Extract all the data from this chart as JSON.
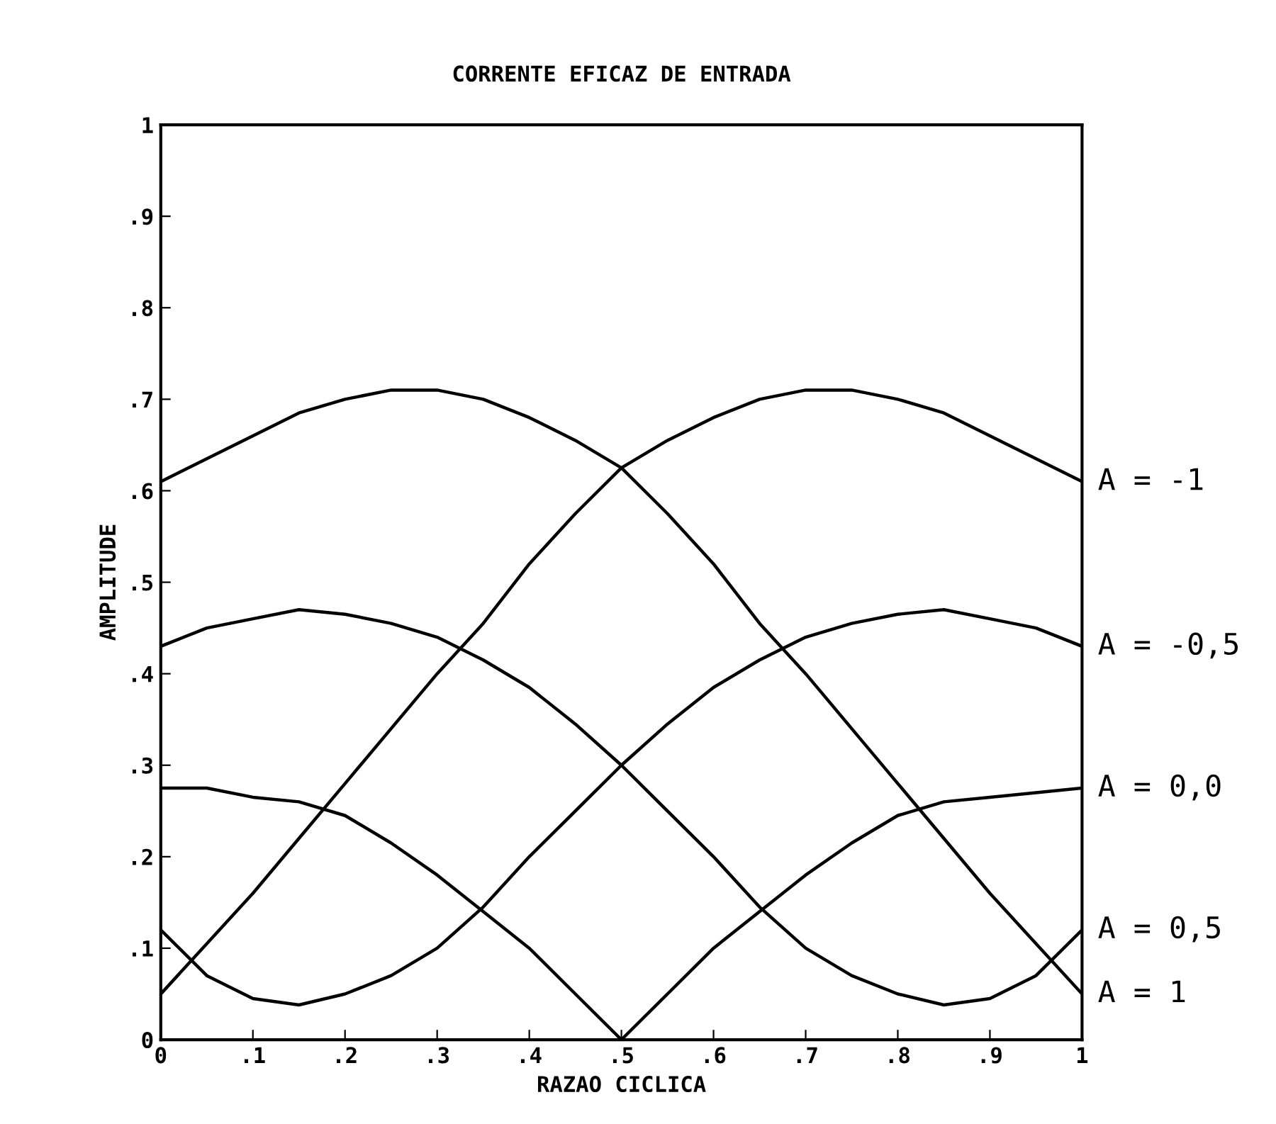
{
  "chart_data": {
    "type": "line",
    "title": "CORRENTE EFICAZ DE ENTRADA",
    "xlabel": "RAZAO CICLICA",
    "ylabel": "AMPLITUDE",
    "x": [
      0,
      0.05,
      0.1,
      0.15,
      0.2,
      0.25,
      0.3,
      0.35,
      0.4,
      0.45,
      0.5,
      0.55,
      0.6,
      0.65,
      0.7,
      0.75,
      0.8,
      0.85,
      0.9,
      0.95,
      1
    ],
    "xlim": [
      0,
      1
    ],
    "ylim": [
      0,
      1
    ],
    "xticks": [
      {
        "value": 0,
        "label": "0"
      },
      {
        "value": 0.1,
        "label": ".1"
      },
      {
        "value": 0.2,
        "label": ".2"
      },
      {
        "value": 0.3,
        "label": ".3"
      },
      {
        "value": 0.4,
        "label": ".4"
      },
      {
        "value": 0.5,
        "label": ".5"
      },
      {
        "value": 0.6,
        "label": ".6"
      },
      {
        "value": 0.7,
        "label": ".7"
      },
      {
        "value": 0.8,
        "label": ".8"
      },
      {
        "value": 0.9,
        "label": ".9"
      },
      {
        "value": 1,
        "label": "1"
      }
    ],
    "yticks": [
      {
        "value": 0,
        "label": "0"
      },
      {
        "value": 0.1,
        "label": ".1"
      },
      {
        "value": 0.2,
        "label": ".2"
      },
      {
        "value": 0.3,
        "label": ".3"
      },
      {
        "value": 0.4,
        "label": ".4"
      },
      {
        "value": 0.5,
        "label": ".5"
      },
      {
        "value": 0.6,
        "label": ".6"
      },
      {
        "value": 0.7,
        "label": ".7"
      },
      {
        "value": 0.8,
        "label": ".8"
      },
      {
        "value": 0.9,
        "label": ".9"
      },
      {
        "value": 1,
        "label": "1"
      }
    ],
    "grid": false,
    "legend": false,
    "marker": "none",
    "line_style": "solid",
    "series": [
      {
        "name": "A = -1",
        "color": "#000000",
        "values": [
          0.05,
          0.105,
          0.16,
          0.22,
          0.28,
          0.34,
          0.4,
          0.455,
          0.52,
          0.575,
          0.625,
          0.655,
          0.68,
          0.7,
          0.71,
          0.71,
          0.7,
          0.685,
          0.66,
          0.635,
          0.61
        ]
      },
      {
        "name": "A = -0,5",
        "color": "#000000",
        "values": [
          0.12,
          0.07,
          0.045,
          0.038,
          0.05,
          0.07,
          0.1,
          0.145,
          0.2,
          0.25,
          0.3,
          0.345,
          0.385,
          0.415,
          0.44,
          0.455,
          0.465,
          0.47,
          0.46,
          0.45,
          0.43
        ]
      },
      {
        "name": "A = 0,0",
        "color": "#000000",
        "values": [
          0.275,
          0.275,
          0.265,
          0.26,
          0.245,
          0.215,
          0.18,
          0.14,
          0.1,
          0.05,
          0.0,
          0.05,
          0.1,
          0.14,
          0.18,
          0.215,
          0.245,
          0.26,
          0.265,
          0.27,
          0.275
        ]
      },
      {
        "name": "A = 0,5",
        "color": "#000000",
        "values": [
          0.43,
          0.45,
          0.46,
          0.47,
          0.465,
          0.455,
          0.44,
          0.415,
          0.385,
          0.345,
          0.3,
          0.25,
          0.2,
          0.145,
          0.1,
          0.07,
          0.05,
          0.038,
          0.045,
          0.07,
          0.12
        ]
      },
      {
        "name": "A = 1",
        "color": "#000000",
        "values": [
          0.61,
          0.635,
          0.66,
          0.685,
          0.7,
          0.71,
          0.71,
          0.7,
          0.68,
          0.655,
          0.625,
          0.575,
          0.52,
          0.455,
          0.4,
          0.34,
          0.28,
          0.22,
          0.16,
          0.105,
          0.05
        ]
      }
    ]
  }
}
